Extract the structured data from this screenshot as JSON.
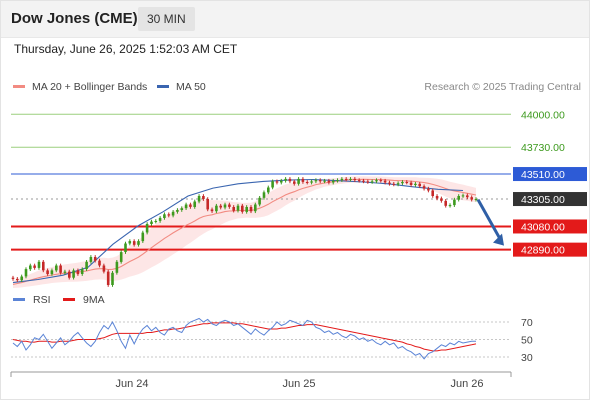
{
  "header": {
    "instrument": "Dow Jones (CME)",
    "timeframe": "30 MIN",
    "datetime": "Thursday, June 26, 2025 1:52:03 AM CET"
  },
  "copyright": "Research © 2025 Trading Central",
  "colors": {
    "up_candle": "#3d9a1e",
    "down_candle": "#c62828",
    "ma20": "#f28b82",
    "bollinger_fill": "#fcdcdc",
    "ma50": "#3a65b0",
    "resistance": "#2d5bd6",
    "target_line": "#9ccf7f",
    "support": "#e31a1a",
    "current_price_bg": "#333333",
    "rsi_line": "#5b84d6",
    "rsi_ma_line": "#e31a1a",
    "arrow": "#2f5fa6"
  },
  "chart_data": [
    {
      "type": "candlestick",
      "legend": [
        {
          "label": "MA 20 + Bollinger Bands",
          "color": "#f28b82"
        },
        {
          "label": "MA 50",
          "color": "#3a65b0"
        }
      ],
      "ylim": [
        42600,
        44150
      ],
      "x_ticks": [
        "Jun 24",
        "Jun 25",
        "Jun 26"
      ],
      "close": [
        42650,
        42640,
        42670,
        42730,
        42760,
        42740,
        42790,
        42720,
        42690,
        42720,
        42760,
        42700,
        42710,
        42660,
        42720,
        42690,
        42730,
        42790,
        42830,
        42800,
        42760,
        42710,
        42600,
        42700,
        42790,
        42870,
        42940,
        42960,
        42930,
        42960,
        43030,
        43100,
        43120,
        43125,
        43150,
        43180,
        43170,
        43200,
        43215,
        43230,
        43260,
        43240,
        43285,
        43330,
        43305,
        43220,
        43205,
        43250,
        43235,
        43260,
        43240,
        43210,
        43250,
        43200,
        43240,
        43205,
        43260,
        43315,
        43360,
        43400,
        43450,
        43440,
        43455,
        43470,
        43450,
        43430,
        43470,
        43445,
        43440,
        43450,
        43460,
        43450,
        43455,
        43440,
        43455,
        43460,
        43470,
        43465,
        43470,
        43460,
        43455,
        43450,
        43445,
        43450,
        43460,
        43455,
        43440,
        43430,
        43425,
        43435,
        43445,
        43440,
        43420,
        43430,
        43410,
        43390,
        43375,
        43330,
        43310,
        43290,
        43250,
        43255,
        43300,
        43330,
        43335,
        43320,
        43300,
        43305
      ],
      "ma20": [
        42605,
        42612,
        42620,
        42630,
        42640,
        42650,
        42660,
        42668,
        42675,
        42682,
        42688,
        42693,
        42697,
        42700,
        42703,
        42706,
        42710,
        42716,
        42723,
        42730,
        42734,
        42734,
        42727,
        42729,
        42737,
        42752,
        42772,
        42793,
        42810,
        42829,
        42853,
        42880,
        42906,
        42931,
        42956,
        42982,
        43004,
        43027,
        43048,
        43068,
        43090,
        43106,
        43125,
        43146,
        43162,
        43170,
        43176,
        43186,
        43193,
        43202,
        43207,
        43208,
        43212,
        43211,
        43213,
        43212,
        43218,
        43230,
        43245,
        43262,
        43283,
        43302,
        43320,
        43339,
        43353,
        43365,
        43380,
        43392,
        43402,
        43412,
        43423,
        43430,
        43437,
        43442,
        43447,
        43452,
        43457,
        43461,
        43464,
        43466,
        43466,
        43467,
        43466,
        43465,
        43465,
        43465,
        43463,
        43460,
        43458,
        43456,
        43455,
        43454,
        43451,
        43449,
        43445,
        43440,
        43434,
        43425,
        43415,
        43404,
        43391,
        43379,
        43371,
        43365,
        43359,
        43352,
        43345,
        43338
      ],
      "bollinger_width": [
        30,
        35,
        40,
        45,
        50,
        55,
        60,
        62,
        64,
        66,
        68,
        70,
        72,
        74,
        76,
        78,
        80,
        82,
        84,
        86,
        88,
        90,
        92,
        96,
        100,
        108,
        116,
        124,
        132,
        140,
        148,
        156,
        162,
        168,
        172,
        176,
        176,
        176,
        174,
        170,
        166,
        160,
        154,
        148,
        142,
        130,
        120,
        110,
        100,
        90,
        80,
        72,
        66,
        62,
        60,
        62,
        68,
        76,
        84,
        90,
        92,
        92,
        90,
        86,
        80,
        74,
        66,
        58,
        50,
        44,
        40,
        36,
        32,
        30,
        28,
        26,
        26,
        25,
        25,
        25,
        25,
        25,
        25,
        25,
        25,
        25,
        25,
        26,
        26,
        27,
        28,
        30,
        32,
        34,
        36,
        40,
        44,
        50,
        56,
        62,
        66,
        68,
        68,
        66,
        64,
        62,
        60,
        58
      ],
      "ma50_points": [
        [
          0,
          42620
        ],
        [
          25,
          42645
        ],
        [
          50,
          42680
        ],
        [
          75,
          42745
        ],
        [
          100,
          42935
        ],
        [
          125,
          43085
        ],
        [
          150,
          43200
        ],
        [
          175,
          43330
        ],
        [
          200,
          43395
        ],
        [
          225,
          43430
        ],
        [
          250,
          43450
        ],
        [
          275,
          43460
        ],
        [
          300,
          43465
        ],
        [
          325,
          43455
        ],
        [
          350,
          43445
        ],
        [
          375,
          43430
        ],
        [
          400,
          43405
        ],
        [
          425,
          43385
        ],
        [
          450,
          43375
        ]
      ],
      "levels": [
        {
          "value": 44000,
          "label": "44000.00",
          "kind": "target"
        },
        {
          "value": 43730,
          "label": "43730.00",
          "kind": "target"
        },
        {
          "value": 43510,
          "label": "43510.00",
          "kind": "resistance"
        },
        {
          "value": 43305,
          "label": "43305.00",
          "kind": "current"
        },
        {
          "value": 43080,
          "label": "43080.00",
          "kind": "support"
        },
        {
          "value": 42890,
          "label": "42890.00",
          "kind": "support"
        }
      ],
      "projection": {
        "from": 43300,
        "to": 42890,
        "direction": "down"
      }
    },
    {
      "type": "line",
      "legend": [
        {
          "label": "RSI",
          "color": "#5b84d6"
        },
        {
          "label": "9MA",
          "color": "#e31a1a"
        }
      ],
      "ylim": [
        22,
        78
      ],
      "y_ticks": [
        "70",
        "50",
        "30"
      ],
      "rsi": [
        46,
        42,
        48,
        38,
        44,
        52,
        50,
        56,
        48,
        40,
        46,
        52,
        44,
        48,
        54,
        58,
        52,
        46,
        42,
        48,
        58,
        66,
        62,
        70,
        60,
        48,
        40,
        55,
        45,
        55,
        62,
        66,
        60,
        64,
        58,
        55,
        62,
        64,
        60,
        58,
        66,
        70,
        72,
        74,
        70,
        73,
        68,
        66,
        70,
        72,
        70,
        66,
        68,
        64,
        60,
        56,
        62,
        58,
        55,
        60,
        64,
        70,
        66,
        68,
        72,
        70,
        68,
        66,
        72,
        70,
        64,
        62,
        58,
        60,
        56,
        58,
        54,
        52,
        56,
        54,
        50,
        52,
        48,
        50,
        46,
        44,
        48,
        44,
        46,
        40,
        42,
        38,
        36,
        32,
        34,
        28,
        34,
        36,
        40,
        44,
        42,
        46,
        44,
        48,
        46,
        47,
        48,
        48
      ],
      "rsi_ma": [
        50,
        49,
        48,
        48,
        47,
        47,
        48,
        48,
        48,
        47,
        47,
        48,
        48,
        48,
        49,
        50,
        50,
        50,
        50,
        50,
        51,
        52,
        54,
        56,
        57,
        57,
        57,
        57,
        57,
        57,
        57,
        58,
        58,
        59,
        60,
        61,
        61,
        62,
        62,
        63,
        64,
        65,
        66,
        67,
        68,
        68,
        69,
        69,
        69,
        69,
        69,
        69,
        68,
        68,
        67,
        66,
        65,
        64,
        63,
        62,
        62,
        62,
        63,
        63,
        64,
        65,
        66,
        66,
        67,
        67,
        67,
        66,
        65,
        64,
        63,
        62,
        61,
        60,
        59,
        58,
        57,
        56,
        55,
        54,
        53,
        52,
        51,
        50,
        49,
        48,
        47,
        45,
        44,
        42,
        41,
        39,
        38,
        37,
        37,
        38,
        38,
        39,
        40,
        41,
        42,
        43,
        44,
        45
      ]
    }
  ]
}
